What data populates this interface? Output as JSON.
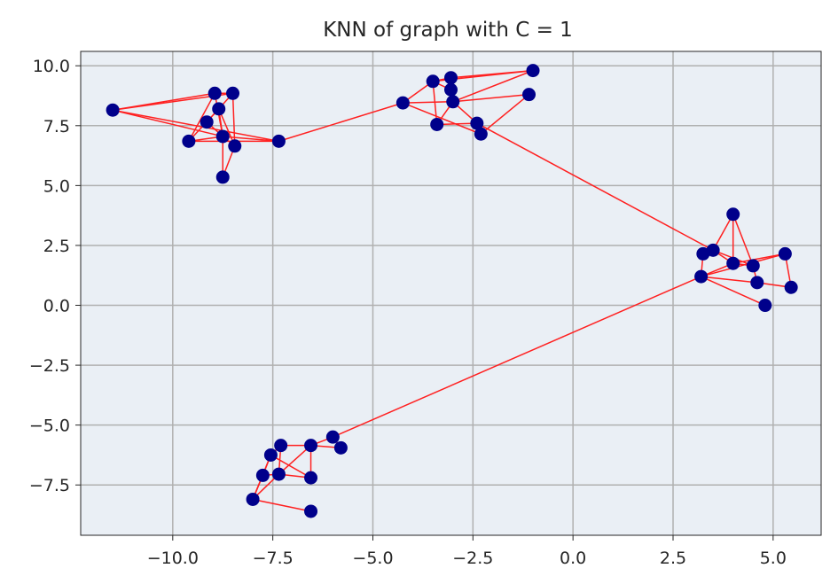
{
  "chart_data": {
    "type": "scatter",
    "title": "KNN of graph with C = 1",
    "xlabel": "",
    "ylabel": "",
    "xlim": [
      -12.3,
      6.2
    ],
    "ylim": [
      -9.6,
      10.6
    ],
    "grid": true,
    "legend": "none",
    "x_ticks": [
      -10.0,
      -7.5,
      -5.0,
      -2.5,
      0.0,
      2.5,
      5.0
    ],
    "x_tick_labels": [
      "−10.0",
      "−7.5",
      "−5.0",
      "−2.5",
      "0.0",
      "2.5",
      "5.0"
    ],
    "y_ticks": [
      10.0,
      7.5,
      5.0,
      2.5,
      0.0,
      -2.5,
      -5.0,
      -7.5
    ],
    "y_tick_labels": [
      "10.0",
      "7.5",
      "5.0",
      "2.5",
      "0.0",
      "−2.5",
      "−5.0",
      "−7.5"
    ],
    "colors": {
      "point": "#00008b",
      "edge": "#ff2020",
      "plot_background": "#eaeff5",
      "grid": "#b0b0b0",
      "text": "#262626"
    },
    "points": [
      {
        "x": -11.5,
        "y": 8.15
      },
      {
        "x": -8.95,
        "y": 8.85
      },
      {
        "x": -8.5,
        "y": 8.85
      },
      {
        "x": -8.85,
        "y": 8.2
      },
      {
        "x": -9.15,
        "y": 7.65
      },
      {
        "x": -8.75,
        "y": 7.05
      },
      {
        "x": -9.6,
        "y": 6.85
      },
      {
        "x": -8.45,
        "y": 6.65
      },
      {
        "x": -7.35,
        "y": 6.85
      },
      {
        "x": -8.75,
        "y": 5.35
      },
      {
        "x": -4.25,
        "y": 8.45
      },
      {
        "x": -3.5,
        "y": 9.35
      },
      {
        "x": -3.05,
        "y": 9.5
      },
      {
        "x": -3.05,
        "y": 9.0
      },
      {
        "x": -3.0,
        "y": 8.5
      },
      {
        "x": -3.4,
        "y": 7.55
      },
      {
        "x": -2.4,
        "y": 7.6
      },
      {
        "x": -2.3,
        "y": 7.15
      },
      {
        "x": -1.0,
        "y": 9.8
      },
      {
        "x": -1.1,
        "y": 8.8
      },
      {
        "x": 4.0,
        "y": 3.8
      },
      {
        "x": 3.5,
        "y": 2.3
      },
      {
        "x": 3.25,
        "y": 2.15
      },
      {
        "x": 5.3,
        "y": 2.15
      },
      {
        "x": 4.0,
        "y": 1.75
      },
      {
        "x": 4.5,
        "y": 1.65
      },
      {
        "x": 3.2,
        "y": 1.2
      },
      {
        "x": 4.6,
        "y": 0.95
      },
      {
        "x": 5.45,
        "y": 0.75
      },
      {
        "x": 4.8,
        "y": 0.0
      },
      {
        "x": -6.0,
        "y": -5.5
      },
      {
        "x": -5.8,
        "y": -5.95
      },
      {
        "x": -6.55,
        "y": -5.85
      },
      {
        "x": -7.3,
        "y": -5.85
      },
      {
        "x": -7.55,
        "y": -6.25
      },
      {
        "x": -7.75,
        "y": -7.1
      },
      {
        "x": -7.35,
        "y": -7.05
      },
      {
        "x": -6.55,
        "y": -7.2
      },
      {
        "x": -8.0,
        "y": -8.1
      },
      {
        "x": -6.55,
        "y": -8.6
      }
    ],
    "edges": [
      [
        0,
        1
      ],
      [
        0,
        2
      ],
      [
        0,
        5
      ],
      [
        0,
        8
      ],
      [
        1,
        2
      ],
      [
        1,
        5
      ],
      [
        2,
        3
      ],
      [
        2,
        7
      ],
      [
        3,
        4
      ],
      [
        3,
        5
      ],
      [
        3,
        6
      ],
      [
        3,
        7
      ],
      [
        1,
        6
      ],
      [
        4,
        5
      ],
      [
        5,
        6
      ],
      [
        5,
        7
      ],
      [
        5,
        8
      ],
      [
        6,
        8
      ],
      [
        5,
        9
      ],
      [
        9,
        7
      ],
      [
        8,
        10
      ],
      [
        10,
        11
      ],
      [
        10,
        14
      ],
      [
        10,
        17
      ],
      [
        11,
        12
      ],
      [
        11,
        13
      ],
      [
        11,
        15
      ],
      [
        11,
        18
      ],
      [
        12,
        13
      ],
      [
        12,
        18
      ],
      [
        13,
        14
      ],
      [
        14,
        15
      ],
      [
        14,
        18
      ],
      [
        14,
        19
      ],
      [
        14,
        16
      ],
      [
        15,
        16
      ],
      [
        16,
        17
      ],
      [
        17,
        19
      ],
      [
        16,
        21
      ],
      [
        20,
        21
      ],
      [
        20,
        24
      ],
      [
        20,
        25
      ],
      [
        21,
        22
      ],
      [
        21,
        24
      ],
      [
        22,
        26
      ],
      [
        21,
        25
      ],
      [
        23,
        24
      ],
      [
        23,
        26
      ],
      [
        23,
        28
      ],
      [
        24,
        25
      ],
      [
        24,
        26
      ],
      [
        25,
        27
      ],
      [
        26,
        27
      ],
      [
        26,
        29
      ],
      [
        27,
        28
      ],
      [
        26,
        30
      ],
      [
        30,
        31
      ],
      [
        30,
        32
      ],
      [
        31,
        32
      ],
      [
        32,
        33
      ],
      [
        32,
        37
      ],
      [
        33,
        34
      ],
      [
        33,
        36
      ],
      [
        34,
        35
      ],
      [
        34,
        37
      ],
      [
        35,
        36
      ],
      [
        36,
        37
      ],
      [
        36,
        38
      ],
      [
        38,
        39
      ],
      [
        35,
        38
      ],
      [
        34,
        38
      ],
      [
        32,
        36
      ]
    ]
  }
}
